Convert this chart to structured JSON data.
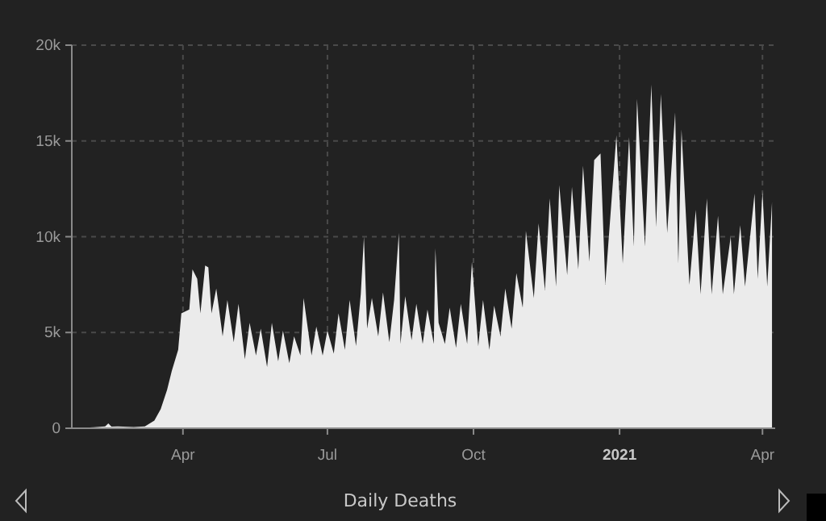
{
  "chart_data": {
    "type": "area",
    "title": "Daily Deaths",
    "x": [
      "2020-01-22",
      "2020-02-05",
      "2020-02-12",
      "2020-02-14",
      "2020-02-16",
      "2020-02-20",
      "2020-03-01",
      "2020-03-08",
      "2020-03-14",
      "2020-03-18",
      "2020-03-22",
      "2020-03-25",
      "2020-03-29",
      "2020-03-31",
      "2020-04-05",
      "2020-04-07",
      "2020-04-10",
      "2020-04-12",
      "2020-04-15",
      "2020-04-17",
      "2020-04-19",
      "2020-04-22",
      "2020-04-26",
      "2020-04-29",
      "2020-05-03",
      "2020-05-06",
      "2020-05-10",
      "2020-05-13",
      "2020-05-17",
      "2020-05-20",
      "2020-05-24",
      "2020-05-27",
      "2020-05-31",
      "2020-06-03",
      "2020-06-07",
      "2020-06-10",
      "2020-06-14",
      "2020-06-16",
      "2020-06-21",
      "2020-06-24",
      "2020-06-28",
      "2020-07-01",
      "2020-07-05",
      "2020-07-08",
      "2020-07-12",
      "2020-07-15",
      "2020-07-19",
      "2020-07-22",
      "2020-07-24",
      "2020-07-26",
      "2020-07-29",
      "2020-08-02",
      "2020-08-05",
      "2020-08-09",
      "2020-08-12",
      "2020-08-15",
      "2020-08-16",
      "2020-08-19",
      "2020-08-23",
      "2020-08-26",
      "2020-08-30",
      "2020-09-02",
      "2020-09-06",
      "2020-09-07",
      "2020-09-09",
      "2020-09-13",
      "2020-09-16",
      "2020-09-20",
      "2020-09-23",
      "2020-09-27",
      "2020-09-30",
      "2020-10-04",
      "2020-10-07",
      "2020-10-11",
      "2020-10-14",
      "2020-10-18",
      "2020-10-21",
      "2020-10-25",
      "2020-10-28",
      "2020-11-01",
      "2020-11-03",
      "2020-11-08",
      "2020-11-11",
      "2020-11-15",
      "2020-11-18",
      "2020-11-22",
      "2020-11-24",
      "2020-11-29",
      "2020-12-02",
      "2020-12-06",
      "2020-12-09",
      "2020-12-13",
      "2020-12-16",
      "2020-12-20",
      "2020-12-23",
      "2020-12-30",
      "2021-01-03",
      "2021-01-07",
      "2021-01-10",
      "2021-01-12",
      "2021-01-17",
      "2021-01-21",
      "2021-01-24",
      "2021-01-27",
      "2021-01-31",
      "2021-02-05",
      "2021-02-07",
      "2021-02-09",
      "2021-02-14",
      "2021-02-18",
      "2021-02-21",
      "2021-02-25",
      "2021-02-28",
      "2021-03-04",
      "2021-03-07",
      "2021-03-12",
      "2021-03-14",
      "2021-03-18",
      "2021-03-21",
      "2021-03-27",
      "2021-03-29",
      "2021-04-01",
      "2021-04-04",
      "2021-04-07"
    ],
    "series": [
      {
        "color": "#ebebeb",
        "values": [
          0,
          50,
          100,
          250,
          80,
          100,
          60,
          100,
          400,
          1000,
          2000,
          3000,
          4100,
          6000,
          6200,
          8300,
          7800,
          6000,
          8500,
          8400,
          6000,
          7300,
          4800,
          6700,
          4500,
          6500,
          3600,
          5500,
          3800,
          5200,
          3200,
          5500,
          3500,
          5100,
          3400,
          4800,
          3800,
          6800,
          3800,
          5300,
          3800,
          5100,
          3900,
          6000,
          4100,
          6700,
          4300,
          7000,
          10000,
          5200,
          6800,
          4800,
          7100,
          4500,
          6700,
          10200,
          4400,
          6900,
          4600,
          6500,
          4400,
          6200,
          4400,
          9400,
          5500,
          4400,
          6300,
          4200,
          6500,
          4400,
          8700,
          4300,
          6700,
          4100,
          6400,
          4800,
          7300,
          5200,
          8100,
          6300,
          10300,
          6800,
          10700,
          7200,
          12000,
          7400,
          12700,
          8000,
          12600,
          8300,
          13700,
          8700,
          14000,
          14350,
          7500,
          15300,
          8600,
          15200,
          9500,
          17200,
          9500,
          17950,
          10500,
          17450,
          10200,
          16500,
          8600,
          15600,
          7500,
          11400,
          7000,
          12000,
          7000,
          11100,
          7000,
          10000,
          7000,
          10600,
          7400,
          12250,
          7800,
          12350,
          7400,
          11800
        ]
      }
    ],
    "xlim": [
      "2020-01-22",
      "2021-04-09"
    ],
    "xticks": [
      {
        "value": "2020-04-01",
        "label": "Apr"
      },
      {
        "value": "2020-07-01",
        "label": "Jul"
      },
      {
        "value": "2020-10-01",
        "label": "Oct"
      },
      {
        "value": "2021-01-01",
        "label": "2021"
      },
      {
        "value": "2021-04-01",
        "label": "Apr"
      }
    ],
    "ylim": [
      0,
      20000
    ],
    "yticks": [
      {
        "value": 0,
        "label": "0"
      },
      {
        "value": 5000,
        "label": "5k"
      },
      {
        "value": 10000,
        "label": "10k"
      },
      {
        "value": 15000,
        "label": "15k"
      },
      {
        "value": 20000,
        "label": "20k"
      }
    ],
    "grid": true
  }
}
